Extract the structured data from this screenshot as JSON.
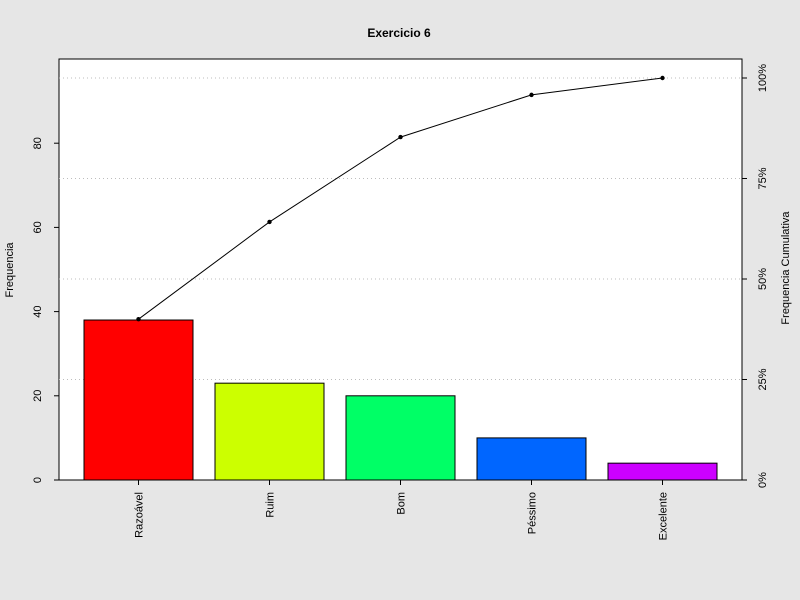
{
  "chart_data": {
    "type": "bar",
    "title": "Exercicio 6",
    "ylabel": "Frequencia",
    "y2label": "Frequencia Cumulativa",
    "categories": [
      "Razoável",
      "Ruim",
      "Bom",
      "Péssimo",
      "Excelente"
    ],
    "values": [
      38,
      23,
      20,
      10,
      4
    ],
    "colors": [
      "#ff0000",
      "#ccff00",
      "#00ff66",
      "#0066ff",
      "#cc00ff"
    ],
    "ylim": [
      0,
      100
    ],
    "yticks": [
      "0",
      "20",
      "40",
      "60",
      "80"
    ],
    "y2ticks": [
      "0%",
      "25%",
      "50%",
      "75%",
      "100%"
    ],
    "cumulative_percent": [
      40,
      64.2,
      85.3,
      95.8,
      100
    ],
    "grid": "horizontal dotted at right-axis ticks",
    "legend": "none"
  }
}
